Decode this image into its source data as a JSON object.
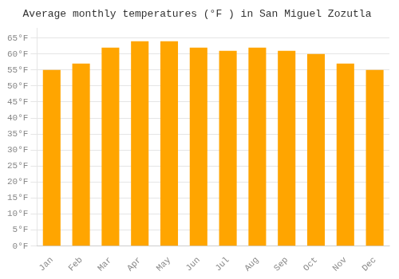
{
  "chart_data": {
    "type": "bar",
    "title": "Average monthly temperatures (°F ) in San Miguel Zozutla",
    "categories": [
      "Jan",
      "Feb",
      "Mar",
      "Apr",
      "May",
      "Jun",
      "Jul",
      "Aug",
      "Sep",
      "Oct",
      "Nov",
      "Dec"
    ],
    "values": [
      55,
      57,
      62,
      64,
      64,
      62,
      61,
      62,
      61,
      60,
      57,
      55
    ],
    "color": "#FFA500",
    "ylim": [
      0,
      68
    ],
    "yticks": [
      {
        "value": 0,
        "label": "0°F"
      },
      {
        "value": 5,
        "label": "5°F"
      },
      {
        "value": 10,
        "label": "10°F"
      },
      {
        "value": 15,
        "label": "15°F"
      },
      {
        "value": 20,
        "label": "20°F"
      },
      {
        "value": 25,
        "label": "25°F"
      },
      {
        "value": 30,
        "label": "30°F"
      },
      {
        "value": 35,
        "label": "35°F"
      },
      {
        "value": 40,
        "label": "40°F"
      },
      {
        "value": 45,
        "label": "45°F"
      },
      {
        "value": 50,
        "label": "50°F"
      },
      {
        "value": 55,
        "label": "55°F"
      },
      {
        "value": 60,
        "label": "60°F"
      },
      {
        "value": 65,
        "label": "65°F"
      }
    ],
    "grid": true
  }
}
